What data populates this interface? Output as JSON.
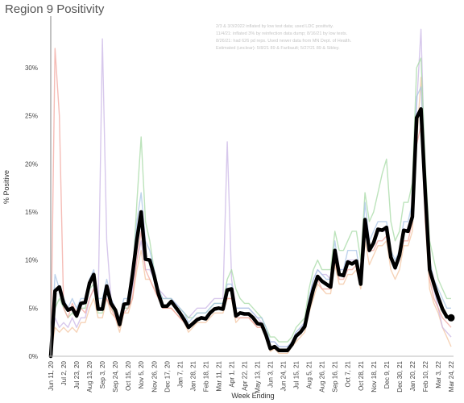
{
  "chart_data": {
    "type": "line",
    "title": "Region 9 Positivity",
    "xlabel": "Week Ending",
    "ylabel": "% Positive",
    "ylim": [
      0,
      35
    ],
    "yticks": [
      0,
      5,
      10,
      15,
      20,
      25,
      30
    ],
    "ytick_format": "{v}%",
    "x_tick_labels": [
      "Jun 11, 20",
      "Jul 2, 20",
      "Jul 23, 20",
      "Aug 13, 20",
      "Sep 3, 20",
      "Sep 24, 20",
      "Oct 15, 20",
      "Nov 5, 20",
      "Nov 26, 20",
      "Dec 17, 20",
      "Jan 7, 21",
      "Jan 28, 21",
      "Feb 18, 21",
      "Mar 11, 21",
      "Apr 1, 21",
      "Apr 22, 21",
      "May 13, 21",
      "Jun 3, 21",
      "Jun 24, 21",
      "Jul 15, 21",
      "Aug 5, 21",
      "Aug 26, 21",
      "Sep 16, 21",
      "Oct 7, 21",
      "Oct 28, 21",
      "Nov 18, 21",
      "Dec 9, 21",
      "Dec 30, 21",
      "Jan 20, 22",
      "Feb 10, 22",
      "Mar 3, 22",
      "Mar 24, 22"
    ],
    "annotation": [
      "2/3 & 3/3/2022 inflated by low test data; used LDC positivity.",
      "11/4/21: inflated 3% by reinfection data dump; 8/16/21 by low tests.",
      "8/26/21: had 626 pd reps. Used newer data from MN Dept. of Health.",
      "Estimated (unclear): 5/8/21 89 & Faribault; 5/27/21 89 & Sibley."
    ],
    "grid": false,
    "legend": "none",
    "colors": {
      "region": "#000000",
      "reference_line": "#999999",
      "series_palette": [
        "#f2a59e",
        "#a8c4e6",
        "#a6d9a4",
        "#c9b5e6",
        "#f3c4a0",
        "#b0b0d8"
      ]
    },
    "series": [
      {
        "values": [
          0,
          6.8,
          7.2,
          5.5,
          4.8,
          5,
          4.2,
          5.5,
          5.6,
          7.6,
          8.5,
          4.9,
          4.9,
          7.3,
          5.5,
          4.8,
          3.3,
          5.4,
          5.5,
          8.5,
          12.1,
          15,
          10.1,
          10,
          8.4,
          6.5,
          5.2,
          5.2,
          5.7,
          5.1,
          4.5,
          3.8,
          3,
          3.4,
          3.8,
          4,
          3.9,
          4.5,
          4.9,
          5,
          4.9,
          6.9,
          7,
          4.2,
          4.5,
          4.4,
          4.4,
          4,
          3.4,
          3.3,
          2.2,
          0.8,
          1,
          0.6,
          0.6,
          0.6,
          1.2,
          2.1,
          2.5,
          3.1,
          5.2,
          7,
          8.3,
          7.8,
          7.5,
          7.2,
          11,
          8.5,
          8.4,
          9.8,
          9.6,
          9.9,
          7.5,
          14.2,
          11,
          11.8,
          13.2,
          13.1,
          13.4,
          10.3,
          9.2,
          10.5,
          13.1,
          13,
          14.5,
          24.8,
          25.7,
          17,
          9,
          7.5,
          6.1,
          4.9,
          4.1,
          4
        ]
      },
      {
        "values": [
          0,
          32,
          25,
          5,
          4,
          5.5,
          4.5,
          5,
          4.5,
          6,
          7,
          5,
          5,
          6,
          5,
          4,
          3,
          4.5,
          5,
          6,
          10,
          13,
          9,
          8,
          7,
          6,
          5,
          5,
          5,
          4.5,
          4,
          3.5,
          3,
          3.5,
          4,
          4,
          4,
          4.5,
          5,
          5,
          5,
          6,
          6,
          4,
          4,
          4,
          4,
          3.5,
          3,
          3,
          2,
          1,
          1,
          0.5,
          0.5,
          0.5,
          1,
          2,
          2.5,
          3,
          5,
          7,
          8,
          7,
          7,
          7,
          10,
          8,
          8,
          9,
          9,
          9.5,
          8,
          13,
          11,
          11,
          12,
          12,
          12.5,
          10,
          9,
          10,
          12,
          12,
          14,
          22,
          24,
          14,
          8,
          6,
          5,
          4,
          3.5,
          3
        ]
      },
      {
        "values": [
          0,
          8.5,
          7,
          6,
          5,
          6,
          5,
          6,
          6,
          8,
          9,
          6,
          6,
          8,
          6,
          5,
          4,
          6,
          6,
          9,
          14,
          17,
          12,
          11,
          9,
          7,
          6,
          6,
          6,
          5.5,
          5,
          4.5,
          3.5,
          4,
          4.5,
          4.5,
          4.5,
          5,
          5.5,
          5.5,
          5.5,
          7.5,
          7.5,
          5,
          5,
          5,
          5,
          4.5,
          4,
          4,
          3,
          1.5,
          1.5,
          1,
          1,
          1,
          1.5,
          2.5,
          3,
          3.5,
          6,
          8,
          9,
          8.5,
          8,
          8,
          12,
          9,
          9,
          11,
          11,
          11,
          8,
          16,
          12,
          13,
          14,
          14,
          14,
          11,
          10,
          11,
          14,
          14,
          16,
          27,
          28,
          19,
          10,
          8,
          7,
          6,
          5,
          5
        ]
      },
      {
        "values": [
          0,
          5,
          6,
          5,
          4,
          4.5,
          4,
          5,
          5,
          7,
          7.5,
          4.5,
          4.5,
          7,
          5,
          4.5,
          3,
          5,
          5,
          8,
          16,
          22.8,
          14,
          12,
          9,
          7,
          6,
          6,
          6,
          5,
          5,
          4.5,
          4,
          4,
          4.5,
          4.5,
          4.5,
          5,
          5.5,
          5.5,
          5.5,
          8,
          9,
          7,
          6,
          5.5,
          5.5,
          5,
          4.5,
          4,
          3,
          2,
          2,
          1.5,
          1.5,
          1.5,
          2,
          3,
          3.5,
          4,
          7,
          9,
          10,
          9,
          9,
          9,
          13,
          11,
          11,
          12,
          13,
          13,
          10,
          17,
          14,
          15,
          17,
          19,
          20.5,
          14,
          12,
          13,
          16,
          16,
          18,
          30,
          31,
          20,
          12,
          10,
          8,
          7,
          6,
          6
        ]
      },
      {
        "values": [
          0,
          4,
          3,
          3.5,
          3,
          4,
          3,
          4,
          4,
          6,
          7,
          5,
          33,
          12,
          6,
          5,
          3.5,
          5,
          5,
          7,
          10,
          12,
          9,
          9,
          8,
          7,
          6.5,
          6,
          6,
          5.5,
          5,
          4.5,
          4,
          4.5,
          5,
          5,
          5,
          5.5,
          6,
          6,
          6,
          22.3,
          8,
          5,
          5,
          5,
          5,
          4.5,
          4,
          3.5,
          2.5,
          1.5,
          1.5,
          1,
          1,
          1,
          1.5,
          2.5,
          3,
          3.5,
          6,
          8,
          9,
          8.5,
          8.5,
          8,
          11,
          9,
          9,
          10,
          10,
          10,
          8,
          14,
          11,
          12,
          13,
          13,
          13,
          10,
          9,
          10,
          13,
          13,
          14,
          26,
          34,
          18,
          9,
          7,
          5,
          3,
          2.5,
          2
        ]
      },
      {
        "values": [
          0,
          3,
          2.5,
          3,
          2.5,
          3,
          2.5,
          3.5,
          3.5,
          5,
          6,
          4,
          4,
          6,
          4.5,
          4,
          2.5,
          4.5,
          4.5,
          6,
          9,
          11,
          8,
          8,
          7,
          6,
          5,
          5,
          5,
          4.5,
          4,
          3.5,
          2.5,
          3,
          3.5,
          3.5,
          3.5,
          4,
          4.5,
          4.5,
          4.5,
          6,
          6,
          3.5,
          4,
          4,
          4,
          3.5,
          3,
          3,
          2,
          0.5,
          0.8,
          0.3,
          0.3,
          0.3,
          1,
          1.5,
          2,
          2.5,
          4.5,
          6,
          7.5,
          7,
          6.5,
          6.5,
          9.5,
          7.5,
          7.5,
          8.5,
          8.5,
          9,
          7,
          12,
          9.5,
          10.5,
          11.5,
          11.5,
          12,
          9,
          8,
          9,
          11.5,
          11.5,
          13,
          22,
          29,
          14,
          7,
          5.5,
          4.5,
          3,
          2,
          1
        ]
      }
    ]
  }
}
